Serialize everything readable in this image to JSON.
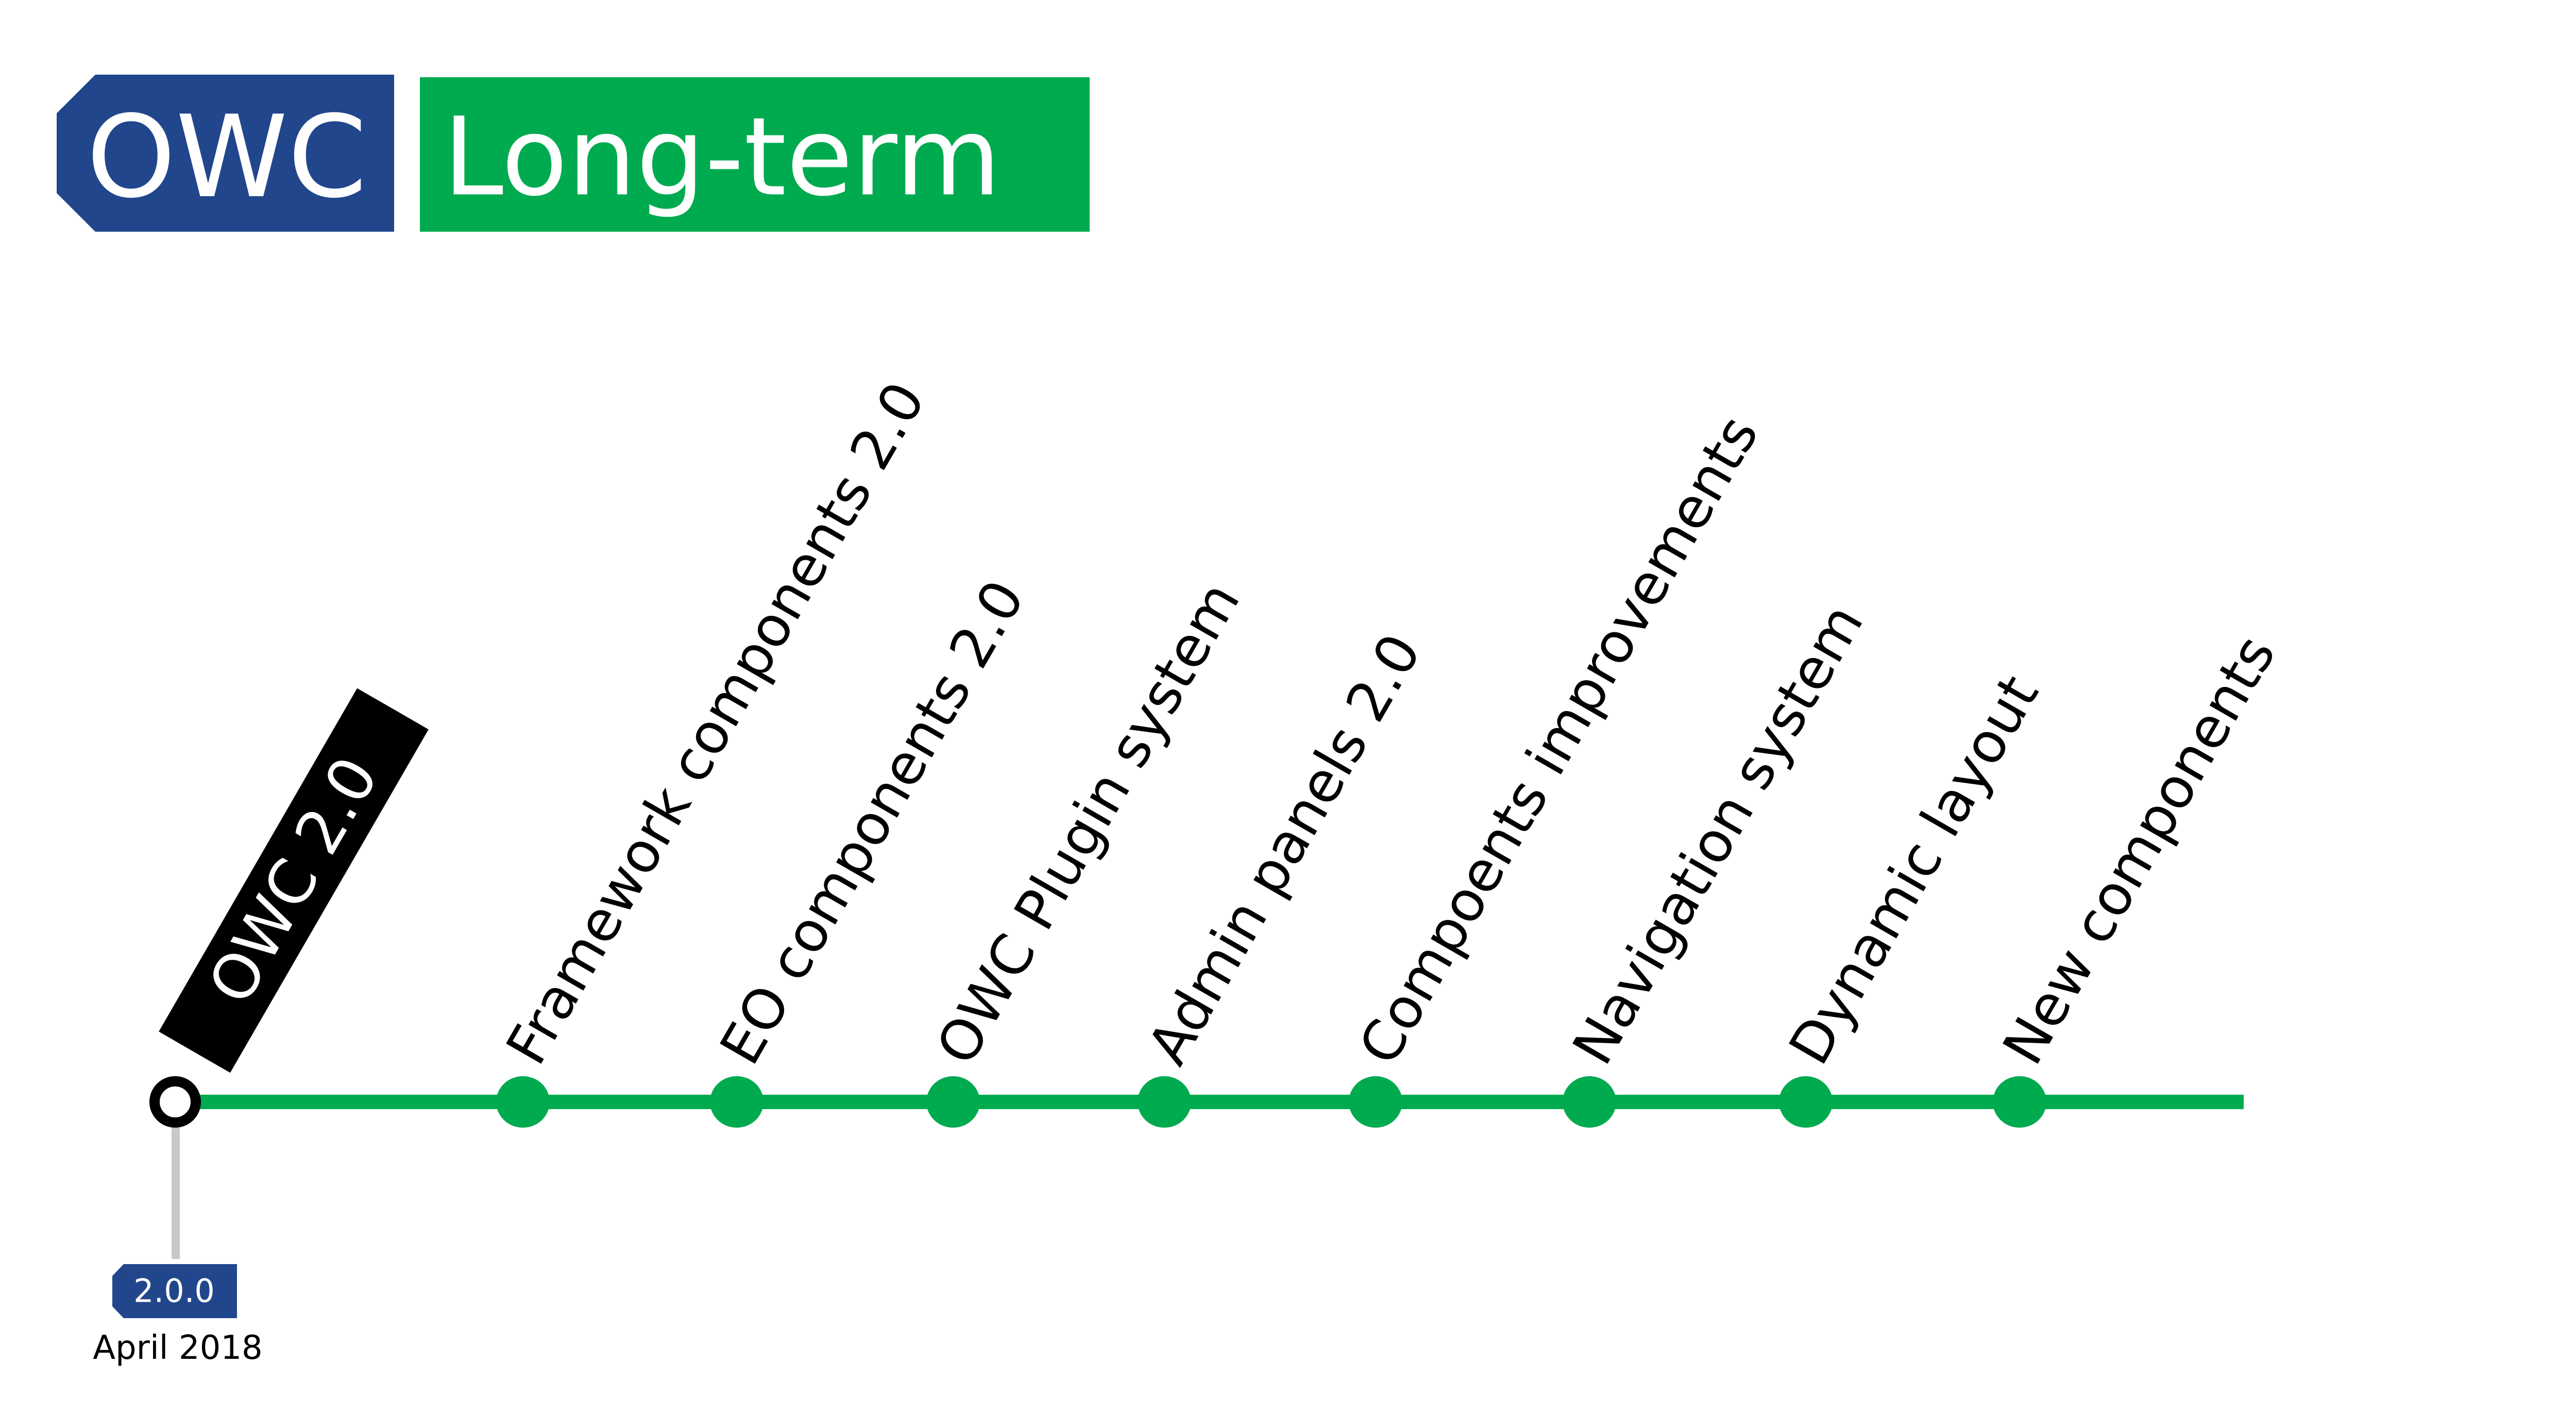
{
  "header": {
    "badge_label": "OWC",
    "title": "Long-term"
  },
  "release": {
    "label": "OWC 2.0",
    "version": "2.0.0",
    "date": "April 2018"
  },
  "stops": [
    {
      "label": "Framework components 2.0"
    },
    {
      "label": "EO components 2.0"
    },
    {
      "label": "OWC Plugin system"
    },
    {
      "label": "Admin panels 2.0"
    },
    {
      "label": "Compoents improvements"
    },
    {
      "label": "Navigation system"
    },
    {
      "label": "Dynamic layout"
    },
    {
      "label": "New components"
    }
  ],
  "colors": {
    "badge_blue": "#21468c",
    "line_green": "#00ab4f",
    "release_tag": "#000000",
    "connector_grey": "#c8c8c8",
    "text_white": "#ffffff",
    "text_dark": "#000000"
  }
}
